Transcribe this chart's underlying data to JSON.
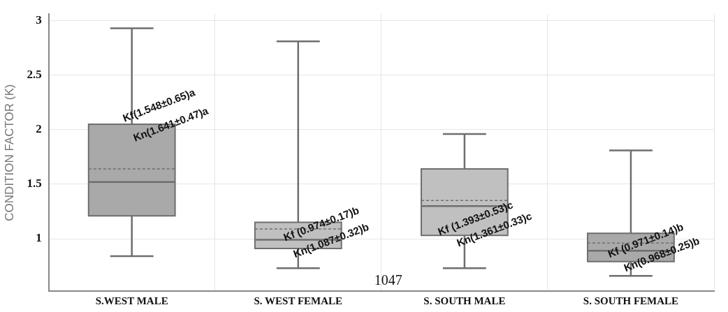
{
  "chart_data": {
    "type": "box",
    "ylabel": "CONDITION FACTOR (K)",
    "categories": [
      "S.WEST MALE",
      "S. WEST FEMALE",
      "S. SOUTH MALE",
      "S. SOUTH FEMALE"
    ],
    "colors": [
      "#a9a9a9",
      "#c0c0c0",
      "#c0c0c0",
      "#a9a9a9"
    ],
    "boxes": [
      {
        "low": 0.84,
        "q1": 1.21,
        "median": 1.52,
        "q3": 2.05,
        "high": 2.93,
        "mean": 1.64
      },
      {
        "low": 0.73,
        "q1": 0.91,
        "median": 0.99,
        "q3": 1.15,
        "high": 2.81,
        "mean": 1.09
      },
      {
        "low": 0.73,
        "q1": 1.03,
        "median": 1.3,
        "q3": 1.64,
        "high": 1.96,
        "mean": 1.35
      },
      {
        "low": 0.66,
        "q1": 0.79,
        "median": 0.89,
        "q3": 1.05,
        "high": 1.81,
        "mean": 0.96
      }
    ],
    "ylim": [
      0.52,
      3.06
    ],
    "yticks": [
      1,
      1.5,
      2,
      2.5,
      3
    ],
    "grid": true,
    "annotations": [
      "Kf(1.548±0.65)a",
      "Kn(1.641±0.47)a",
      "Kf (0.974±0.17)b",
      "Kn(1.087±0.32)b",
      "Kf (1.393±0.53)c",
      "Kn(1.361±0.33)c",
      "Kf (0.971±0.14)b",
      "Kn(0.968±0.25)b",
      "1047"
    ]
  }
}
